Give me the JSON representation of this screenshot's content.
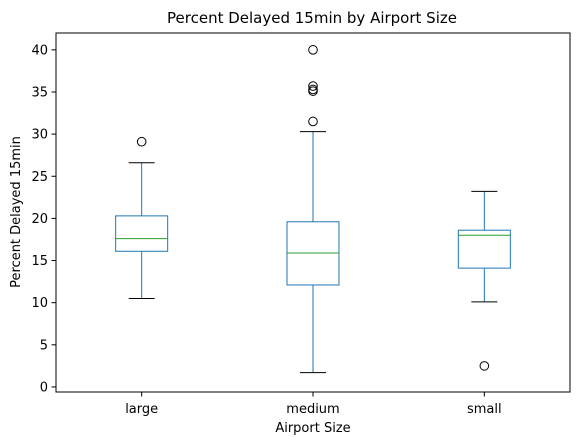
{
  "chart_data": {
    "type": "box",
    "title": "Percent Delayed 15min by Airport Size",
    "xlabel": "Airport Size",
    "ylabel": "Percent Delayed 15min",
    "ylim": [
      -0.6,
      42
    ],
    "yticks": [
      0,
      5,
      10,
      15,
      20,
      25,
      30,
      35,
      40
    ],
    "categories": [
      "large",
      "medium",
      "small"
    ],
    "boxes": [
      {
        "category": "large",
        "whisker_low": 10.5,
        "q1": 16.1,
        "median": 17.6,
        "q3": 20.3,
        "whisker_high": 26.6,
        "outliers": [
          29.1
        ]
      },
      {
        "category": "medium",
        "whisker_low": 1.7,
        "q1": 12.1,
        "median": 15.9,
        "q3": 19.6,
        "whisker_high": 30.3,
        "outliers": [
          31.5,
          35.1,
          35.3,
          35.7,
          40.0
        ]
      },
      {
        "category": "small",
        "whisker_low": 10.1,
        "q1": 14.1,
        "median": 18.0,
        "q3": 18.6,
        "whisker_high": 23.2,
        "outliers": [
          2.5
        ]
      }
    ],
    "grid": false,
    "colors": {
      "box": "#1f77b4",
      "median": "#2ca02c",
      "whisker": "#1f77b4",
      "cap": "#000000",
      "outlier": "#000000"
    }
  }
}
